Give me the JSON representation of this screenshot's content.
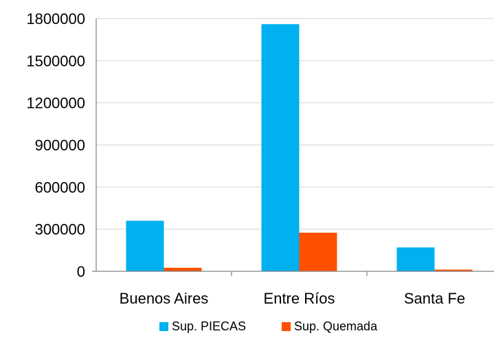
{
  "chart_data": {
    "type": "bar",
    "categories": [
      "Buenos Aires",
      "Entre Ríos",
      "Santa Fe"
    ],
    "series": [
      {
        "name": "Sup. PIECAS",
        "color": "#00b0f0",
        "values": [
          360000,
          1760000,
          170000
        ]
      },
      {
        "name": "Sup. Quemada",
        "color": "#ff5000",
        "values": [
          25000,
          275000,
          12000
        ]
      }
    ],
    "ylim": [
      0,
      1800000
    ],
    "yticks": [
      "0",
      "300000",
      "600000",
      "900000",
      "1200000",
      "1500000",
      "1800000"
    ],
    "grid": true,
    "legend_position": "bottom",
    "title": "",
    "xlabel": "",
    "ylabel": ""
  }
}
